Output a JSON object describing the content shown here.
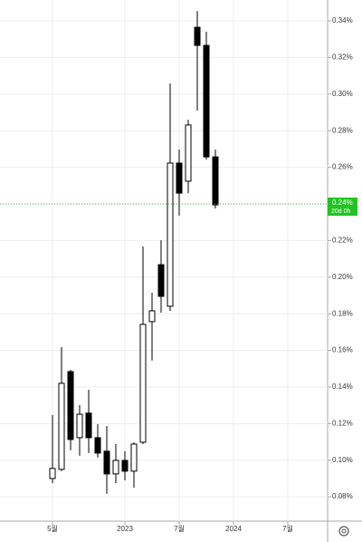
{
  "chart_data": {
    "type": "candlestick",
    "categories": [
      "5월",
      null,
      null,
      null,
      null,
      null,
      null,
      null,
      "2023",
      null,
      null,
      null,
      null,
      null,
      "7월",
      null,
      null,
      null,
      null,
      null,
      "2024",
      null,
      null,
      null,
      null,
      null,
      "7월",
      null,
      null,
      null
    ],
    "open": [
      0.09,
      0.095,
      0.1484,
      0.1123,
      0.1257,
      0.1123,
      0.1049,
      0.0925,
      0.0999,
      0.094,
      0.1098,
      0.1757,
      0.2068,
      0.1841,
      0.2623,
      0.2524,
      0.3365,
      0.3266,
      0.2657,
      null,
      null,
      null,
      null,
      null,
      null,
      null,
      null,
      null,
      null,
      null
    ],
    "high": [
      0.1247,
      0.1618,
      0.1494,
      0.1301,
      0.1385,
      0.1197,
      0.1187,
      0.1088,
      0.1049,
      0.1098,
      0.2167,
      0.1915,
      0.2202,
      0.3058,
      0.2697,
      0.286,
      0.3454,
      0.3341,
      0.2697,
      null,
      null,
      null,
      null,
      null,
      null,
      null,
      null,
      null,
      null,
      null
    ],
    "low": [
      0.0875,
      0.094,
      0.1054,
      0.1024,
      0.1039,
      0.1014,
      0.0816,
      0.0875,
      0.089,
      0.085,
      0.1088,
      0.1544,
      0.1806,
      0.1816,
      0.2336,
      0.2459,
      0.291,
      0.2642,
      0.2375,
      null,
      null,
      null,
      null,
      null,
      null,
      null,
      null,
      null,
      null,
      null
    ],
    "close": [
      0.0955,
      0.142,
      0.1113,
      0.1251,
      0.1123,
      0.1039,
      0.0925,
      0.0999,
      0.094,
      0.1088,
      0.1742,
      0.1816,
      0.1895,
      0.2623,
      0.2459,
      0.2831,
      0.3266,
      0.2657,
      0.2395,
      null,
      null,
      null,
      null,
      null,
      null,
      null,
      null,
      null,
      null,
      null
    ],
    "up_color": "#ffffff",
    "down_color": "#000000",
    "ylim": [
      0.0667,
      0.3514
    ],
    "yticks": [
      {
        "value": 0.08,
        "label": "0.08%"
      },
      {
        "value": 0.1,
        "label": "0.10%"
      },
      {
        "value": 0.12,
        "label": "0.12%"
      },
      {
        "value": 0.14,
        "label": "0.14%"
      },
      {
        "value": 0.16,
        "label": "0.16%"
      },
      {
        "value": 0.18,
        "label": "0.18%"
      },
      {
        "value": 0.2,
        "label": "0.20%"
      },
      {
        "value": 0.22,
        "label": "0.22%"
      },
      {
        "value": 0.24,
        "label": "0.24%"
      },
      {
        "value": 0.26,
        "label": "0.26%"
      },
      {
        "value": 0.28,
        "label": "0.28%"
      },
      {
        "value": 0.3,
        "label": "0.30%"
      },
      {
        "value": 0.32,
        "label": "0.32%"
      },
      {
        "value": 0.34,
        "label": "0.34%"
      }
    ],
    "grid": true,
    "last_price": {
      "value": 0.24,
      "label": "0.24%",
      "color": "#22c322"
    },
    "countdown": "20d 0h"
  }
}
